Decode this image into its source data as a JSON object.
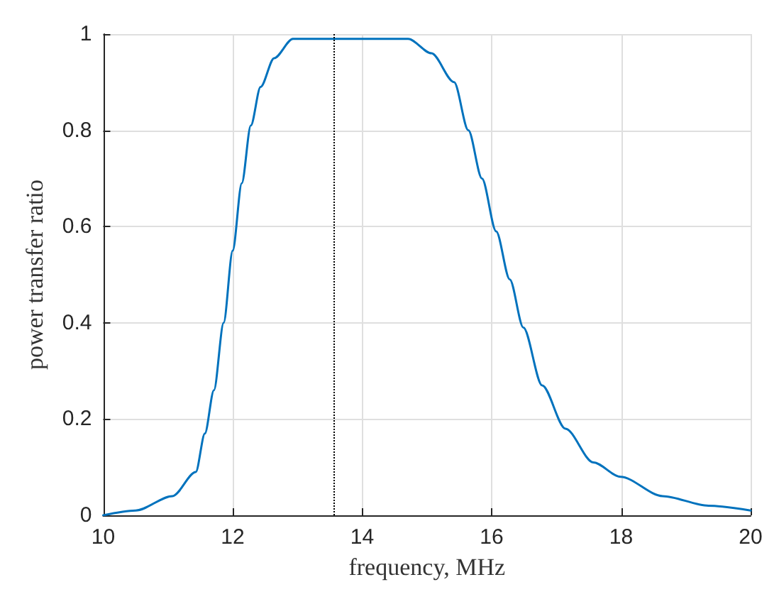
{
  "chart_data": {
    "type": "line",
    "xlabel": "frequency, MHz",
    "ylabel": "power transfer ratio",
    "xlim": [
      10,
      20
    ],
    "xticks": [
      10,
      12,
      14,
      16,
      18,
      20
    ],
    "ylim": [
      0,
      1
    ],
    "yticks": [
      0,
      0.2,
      0.4,
      0.6,
      0.8,
      1
    ],
    "grid": true,
    "series": [
      {
        "color": "#0072bd",
        "x": [
          10,
          10.5,
          11.07,
          11.43,
          11.57,
          11.71,
          11.86,
          12,
          12.14,
          12.28,
          12.43,
          12.64,
          12.93,
          13.36,
          14,
          14.71,
          15.07,
          15.42,
          15.64,
          15.85,
          16.07,
          16.28,
          16.49,
          16.78,
          17.14,
          17.57,
          17.99,
          18.64,
          19.35,
          20
        ],
        "values": [
          0,
          0.01,
          0.04,
          0.09,
          0.17,
          0.26,
          0.4,
          0.55,
          0.69,
          0.81,
          0.89,
          0.95,
          0.99,
          0.99,
          0.99,
          0.99,
          0.96,
          0.9,
          0.8,
          0.7,
          0.59,
          0.49,
          0.39,
          0.27,
          0.18,
          0.11,
          0.08,
          0.04,
          0.02,
          0.01
        ]
      }
    ],
    "ref_lines": [
      {
        "axis": "x",
        "value": 13.56,
        "color": "#000000",
        "line_style": "dotted"
      }
    ]
  }
}
